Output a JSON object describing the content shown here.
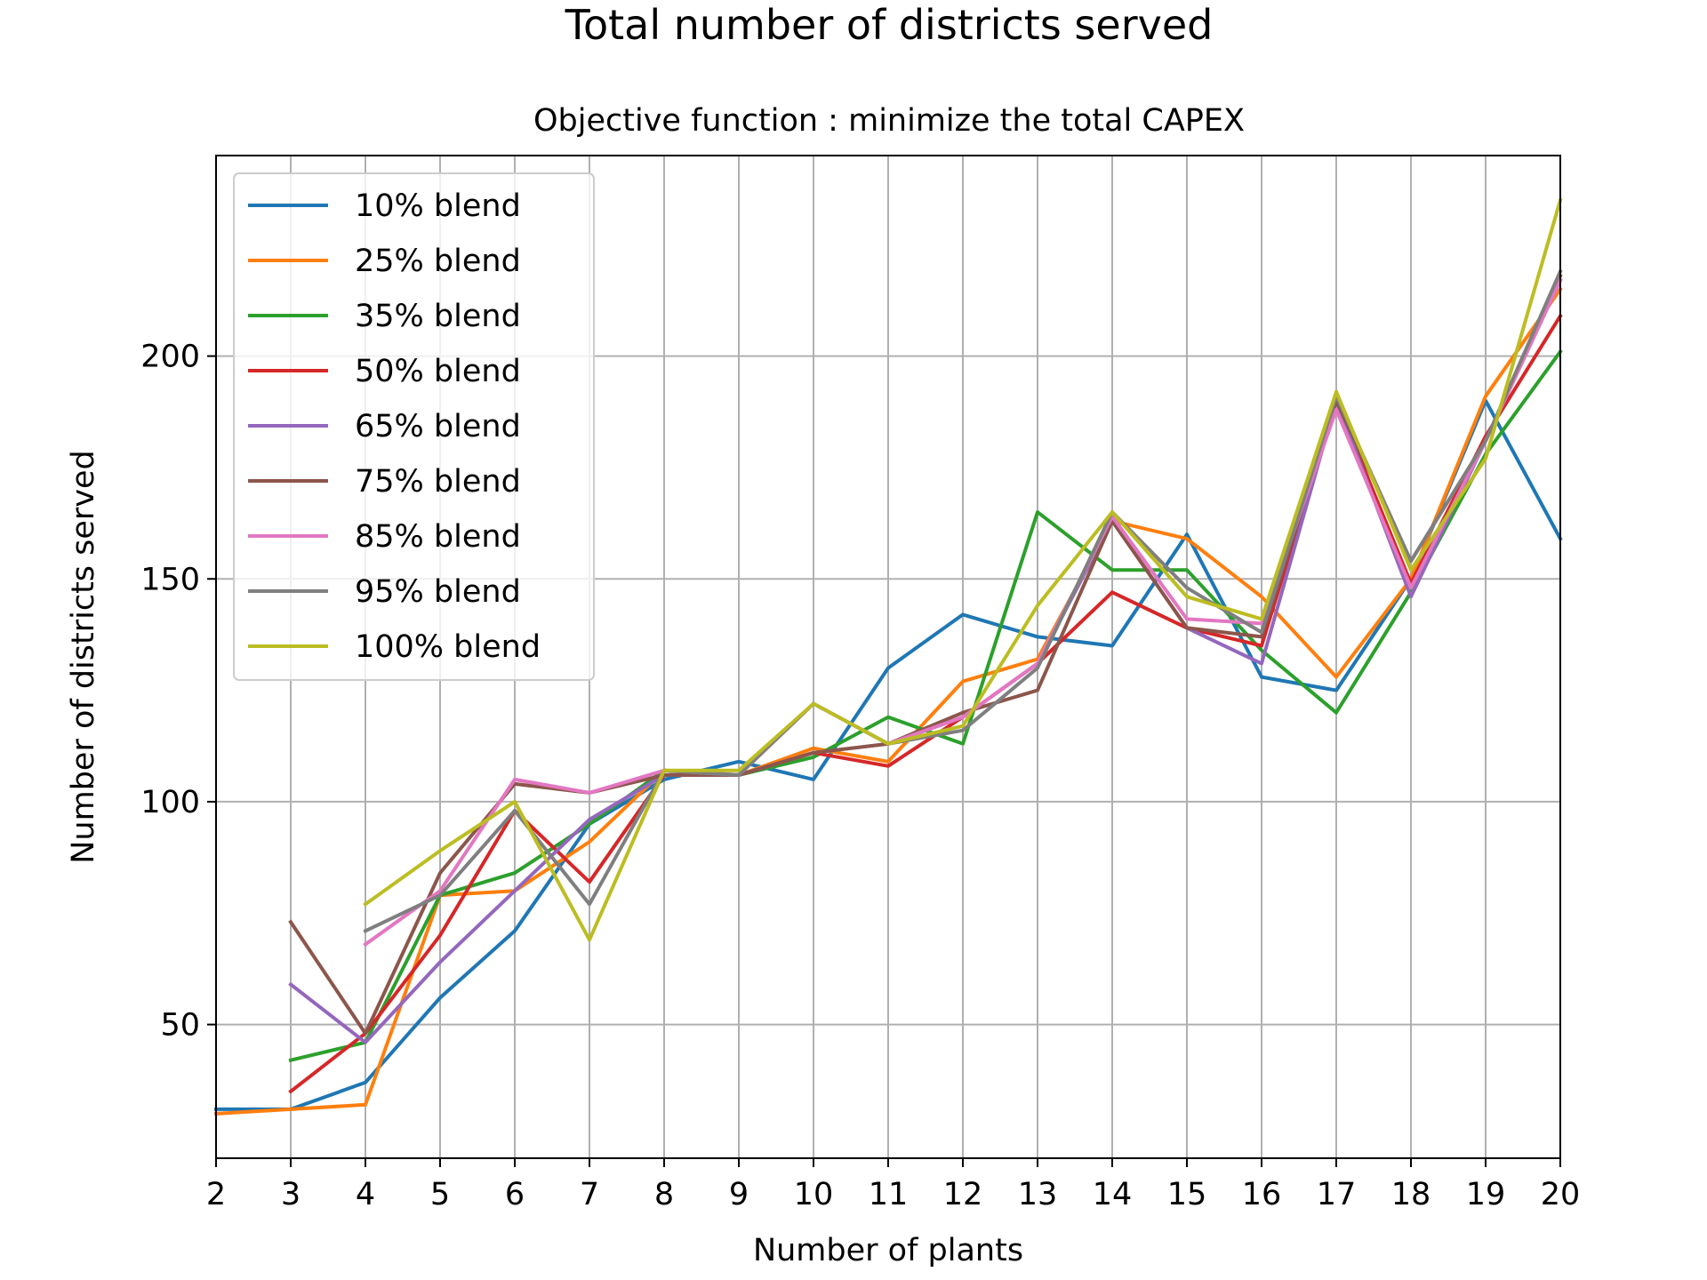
{
  "chart_data": {
    "type": "line",
    "title": "Total number of districts served",
    "subtitle": "Objective function : minimize the total CAPEX",
    "xlabel": "Number of plants",
    "ylabel": "Number of districts served",
    "xlim": [
      2,
      20
    ],
    "ylim": [
      20,
      245
    ],
    "xticks": [
      2,
      3,
      4,
      5,
      6,
      7,
      8,
      9,
      10,
      11,
      12,
      13,
      14,
      15,
      16,
      17,
      18,
      19,
      20
    ],
    "yticks": [
      50,
      100,
      150,
      200
    ],
    "grid": true,
    "legend": "top-left",
    "x": [
      2,
      3,
      4,
      5,
      6,
      7,
      8,
      9,
      10,
      11,
      12,
      13,
      14,
      15,
      16,
      17,
      18,
      19,
      20
    ],
    "series": [
      {
        "name": "10% blend",
        "color": "#1f77b4",
        "values": [
          31,
          31,
          37,
          56,
          71,
          95,
          105,
          109,
          105,
          130,
          142,
          137,
          135,
          160,
          128,
          125,
          150,
          190,
          159
        ]
      },
      {
        "name": "25% blend",
        "color": "#ff7f0e",
        "values": [
          30,
          31,
          32,
          79,
          80,
          91,
          107,
          106,
          112,
          109,
          127,
          132,
          163,
          159,
          146,
          128,
          150,
          191,
          215
        ]
      },
      {
        "name": "35% blend",
        "color": "#2ca02c",
        "values": [
          null,
          42,
          46,
          79,
          84,
          95,
          107,
          106,
          110,
          119,
          113,
          165,
          152,
          152,
          134,
          120,
          147,
          178,
          201
        ]
      },
      {
        "name": "50% blend",
        "color": "#d62728",
        "values": [
          null,
          35,
          48,
          70,
          98,
          82,
          106,
          106,
          111,
          108,
          119,
          131,
          147,
          139,
          135,
          190,
          149,
          182,
          209
        ]
      },
      {
        "name": "65% blend",
        "color": "#9467bd",
        "values": [
          null,
          59,
          46,
          64,
          80,
          96,
          106,
          106,
          111,
          113,
          119,
          131,
          163,
          139,
          131,
          190,
          146,
          181,
          217
        ]
      },
      {
        "name": "75% blend",
        "color": "#8c564b",
        "values": [
          null,
          73,
          48,
          84,
          104,
          102,
          106,
          106,
          111,
          113,
          120,
          125,
          163,
          139,
          137,
          190,
          154,
          181,
          218
        ]
      },
      {
        "name": "85% blend",
        "color": "#e377c2",
        "values": [
          null,
          null,
          68,
          80,
          105,
          102,
          107,
          106,
          122,
          113,
          119,
          131,
          164,
          141,
          140,
          188,
          148,
          181,
          217
        ]
      },
      {
        "name": "95% blend",
        "color": "#7f7f7f",
        "values": [
          null,
          null,
          71,
          79,
          98,
          77,
          107,
          106,
          122,
          113,
          116,
          130,
          165,
          148,
          138,
          191,
          154,
          181,
          219
        ]
      },
      {
        "name": "100% blend",
        "color": "#bcbd22",
        "values": [
          null,
          null,
          77,
          89,
          100,
          69,
          107,
          107,
          122,
          113,
          117,
          144,
          165,
          146,
          141,
          192,
          152,
          177,
          235
        ]
      }
    ]
  }
}
